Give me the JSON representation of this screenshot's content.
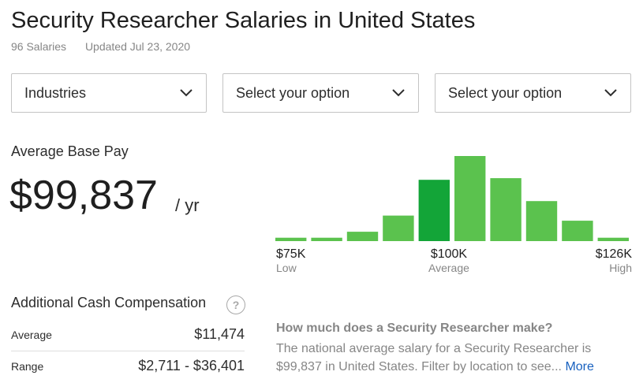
{
  "header": {
    "title": "Security Researcher Salaries in United States",
    "salaries_count": "96 Salaries",
    "updated": "Updated Jul 23, 2020"
  },
  "filters": [
    {
      "label": "Industries"
    },
    {
      "label": "Select your option"
    },
    {
      "label": "Select your option"
    }
  ],
  "base_pay": {
    "label": "Average Base Pay",
    "value": "$99,837",
    "unit": "/ yr"
  },
  "colors": {
    "bar": "#5bc24e",
    "bar_highlight": "#13a538",
    "link": "#1861bf"
  },
  "chart_data": {
    "type": "bar",
    "values": [
      4,
      4,
      11,
      30,
      72,
      100,
      74,
      47,
      24,
      4
    ],
    "highlight_index": 4,
    "x_labels": [
      {
        "value": "$75K",
        "sub": "Low"
      },
      {
        "value": "$100K",
        "sub": "Average"
      },
      {
        "value": "$126K",
        "sub": "High"
      }
    ]
  },
  "cash": {
    "title": "Additional Cash Compensation",
    "help_icon": "question-circle-icon",
    "rows": [
      {
        "label": "Average",
        "value": "$11,474"
      },
      {
        "label": "Range",
        "value": "$2,711 - $36,401"
      }
    ]
  },
  "faq": {
    "question": "How much does a Security Researcher make?",
    "answer": "The national average salary for a Security Researcher is $99,837 in United States. Filter by location to see...",
    "more": "More"
  }
}
